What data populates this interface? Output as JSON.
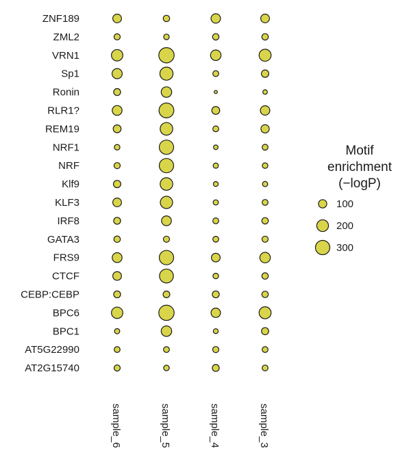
{
  "chart_data": {
    "type": "dot-matrix",
    "rows": [
      "ZNF189",
      "ZML2",
      "VRN1",
      "Sp1",
      "Ronin",
      "RLR1?",
      "REM19",
      "NRF1",
      "NRF",
      "Klf9",
      "KLF3",
      "IRF8",
      "GATA3",
      "FRS9",
      "CTCF",
      "CEBP:CEBP",
      "BPC6",
      "BPC1",
      "AT5G22990",
      "AT2G15740"
    ],
    "columns": [
      "sample_6",
      "sample_5",
      "sample_4",
      "sample_3"
    ],
    "values": [
      [
        110,
        60,
        130,
        110
      ],
      [
        55,
        45,
        60,
        60
      ],
      [
        190,
        340,
        160,
        210
      ],
      [
        150,
        250,
        50,
        80
      ],
      [
        70,
        160,
        15,
        30
      ],
      [
        140,
        320,
        90,
        130
      ],
      [
        90,
        230,
        50,
        100
      ],
      [
        45,
        300,
        30,
        50
      ],
      [
        55,
        300,
        40,
        45
      ],
      [
        80,
        230,
        35,
        40
      ],
      [
        110,
        220,
        40,
        50
      ],
      [
        70,
        140,
        50,
        60
      ],
      [
        60,
        55,
        50,
        55
      ],
      [
        140,
        300,
        110,
        160
      ],
      [
        110,
        280,
        45,
        60
      ],
      [
        70,
        65,
        70,
        60
      ],
      [
        190,
        340,
        130,
        210
      ],
      [
        40,
        160,
        35,
        75
      ],
      [
        50,
        50,
        55,
        50
      ],
      [
        55,
        45,
        70,
        50
      ]
    ],
    "legend": {
      "title": [
        "Motif",
        "enrichment",
        "(−logP)"
      ],
      "values": [
        100,
        200,
        300
      ],
      "labels": [
        "100",
        "200",
        "300"
      ],
      "placement": "right"
    },
    "fill_color": "#d9d54a",
    "stroke_color": "#1a1a1a"
  }
}
